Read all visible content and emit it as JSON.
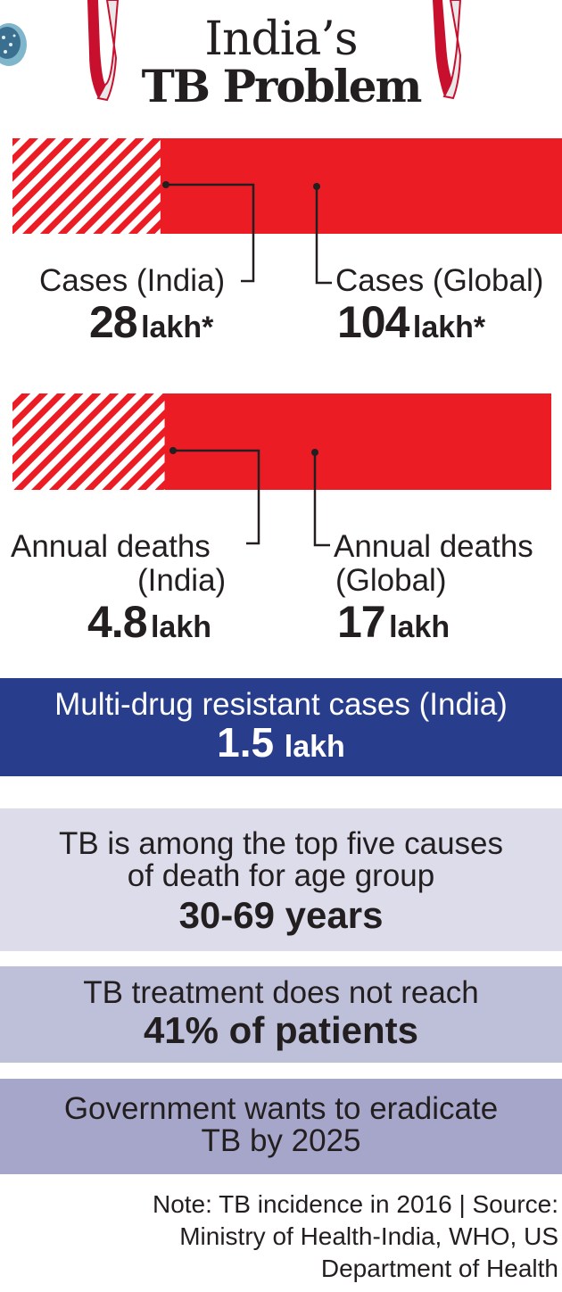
{
  "title": {
    "line1": "India’s",
    "line2": "TB Problem"
  },
  "chart_data": [
    {
      "type": "bar",
      "series": [
        {
          "name": "Cases (India)",
          "value": 28,
          "unit": "lakh*"
        },
        {
          "name": "Cases (Global)",
          "value": 104,
          "unit": "lakh*"
        }
      ],
      "labels": [
        "Cases (India)",
        "Cases (Global)"
      ],
      "values_text": [
        "28",
        "104"
      ],
      "units_text": [
        "lakh*",
        "lakh*"
      ],
      "colors": {
        "india": "#ffffff-stripes-on-#ec1c24",
        "global": "#ec1c24"
      }
    },
    {
      "type": "bar",
      "series": [
        {
          "name": "Annual deaths (India)",
          "value": 4.8,
          "unit": "lakh"
        },
        {
          "name": "Annual deaths (Global)",
          "value": 17,
          "unit": "lakh"
        }
      ],
      "labels": [
        [
          "Annual deaths",
          "(India)"
        ],
        [
          "Annual deaths",
          "(Global)"
        ]
      ],
      "values_text": [
        "4.8",
        "17"
      ],
      "units_text": [
        "lakh",
        "lakh"
      ],
      "colors": {
        "india": "#ffffff-stripes-on-#ec1c24",
        "global": "#ec1c24"
      }
    }
  ],
  "mdr": {
    "label": "Multi-drug resistant cases (India)",
    "value": "1.5",
    "unit": "lakh"
  },
  "fact1": {
    "line1": "TB is among the top five causes",
    "line2": "of death for age group",
    "highlight": "30-69 years"
  },
  "fact2": {
    "line1": "TB treatment does not reach",
    "highlight": "41% of patients"
  },
  "fact3": {
    "line1": "Government wants to eradicate",
    "line2": "TB by 2025"
  },
  "note": {
    "line1": "Note: TB incidence in 2016 | Source:",
    "line2": "Ministry of Health-India, WHO, US",
    "line3": "Department of Health"
  },
  "colors": {
    "red": "#ec1c24",
    "navy": "#283e8c",
    "text": "#231f20"
  },
  "icons": [
    "ribbon-icon",
    "bacterium-icon"
  ]
}
